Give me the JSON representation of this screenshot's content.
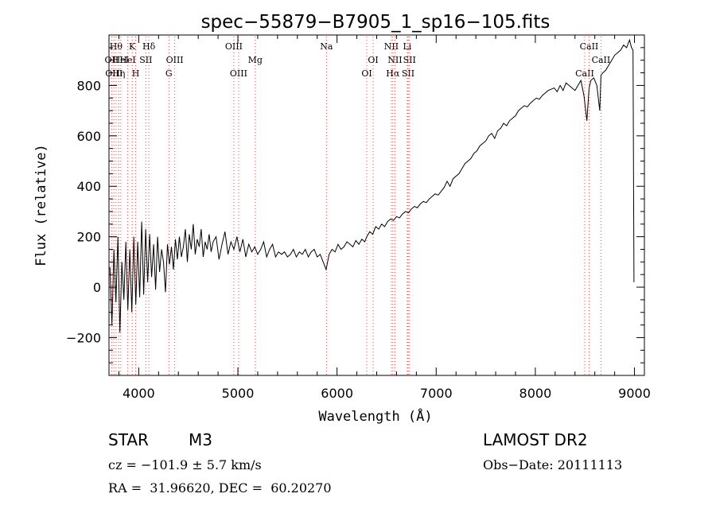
{
  "chart_data": {
    "type": "line",
    "title": "spec−55879−B7905_1_sp16−105.fits",
    "xlabel": "Wavelength (Å)",
    "ylabel": "Flux (relative)",
    "xlim": [
      3700,
      9100
    ],
    "ylim": [
      -350,
      1000
    ],
    "xticks": [
      4000,
      5000,
      6000,
      7000,
      8000,
      9000
    ],
    "xtick_labels": [
      "4000",
      "5000",
      "6000",
      "7000",
      "8000",
      "9000"
    ],
    "yticks": [
      -200,
      0,
      200,
      400,
      600,
      800
    ],
    "ytick_labels": [
      "−200",
      "0",
      "200",
      "400",
      "600",
      "800"
    ],
    "grid": false,
    "series": [
      {
        "color": "#000000",
        "x": [
          3710,
          3730,
          3750,
          3770,
          3790,
          3810,
          3830,
          3850,
          3870,
          3890,
          3910,
          3930,
          3950,
          3970,
          3990,
          4010,
          4030,
          4050,
          4070,
          4090,
          4110,
          4130,
          4150,
          4170,
          4190,
          4210,
          4230,
          4250,
          4270,
          4290,
          4310,
          4330,
          4350,
          4370,
          4390,
          4410,
          4430,
          4450,
          4470,
          4490,
          4510,
          4530,
          4550,
          4570,
          4590,
          4610,
          4630,
          4650,
          4670,
          4690,
          4710,
          4730,
          4750,
          4780,
          4810,
          4840,
          4870,
          4900,
          4930,
          4960,
          4990,
          5020,
          5050,
          5080,
          5110,
          5140,
          5170,
          5200,
          5230,
          5260,
          5290,
          5320,
          5350,
          5380,
          5410,
          5440,
          5470,
          5500,
          5530,
          5560,
          5590,
          5620,
          5650,
          5680,
          5710,
          5740,
          5770,
          5800,
          5830,
          5860,
          5890,
          5920,
          5950,
          5980,
          6010,
          6040,
          6070,
          6100,
          6130,
          6160,
          6190,
          6220,
          6250,
          6280,
          6300,
          6330,
          6360,
          6390,
          6420,
          6450,
          6480,
          6510,
          6540,
          6570,
          6600,
          6630,
          6660,
          6690,
          6720,
          6750,
          6780,
          6810,
          6840,
          6870,
          6900,
          6930,
          6960,
          6990,
          7020,
          7050,
          7080,
          7110,
          7140,
          7170,
          7200,
          7230,
          7260,
          7290,
          7320,
          7350,
          7380,
          7410,
          7440,
          7470,
          7500,
          7530,
          7560,
          7590,
          7620,
          7650,
          7680,
          7710,
          7740,
          7770,
          7800,
          7830,
          7860,
          7890,
          7920,
          7950,
          7980,
          8010,
          8040,
          8070,
          8100,
          8130,
          8160,
          8190,
          8220,
          8250,
          8280,
          8310,
          8340,
          8370,
          8400,
          8430,
          8460,
          8490,
          8520,
          8542,
          8560,
          8590,
          8620,
          8650,
          8662,
          8680,
          8710,
          8740,
          8770,
          8800,
          8830,
          8860,
          8890,
          8920,
          8950,
          8970,
          8985,
          8995
        ],
        "y": [
          80,
          -150,
          150,
          -60,
          200,
          -180,
          100,
          -50,
          180,
          -90,
          150,
          -100,
          200,
          -70,
          180,
          -40,
          260,
          -30,
          230,
          20,
          210,
          40,
          170,
          -10,
          200,
          60,
          150,
          100,
          -20,
          170,
          90,
          160,
          70,
          190,
          110,
          200,
          120,
          160,
          230,
          100,
          210,
          150,
          250,
          130,
          190,
          160,
          230,
          120,
          180,
          150,
          210,
          140,
          180,
          200,
          110,
          170,
          220,
          130,
          180,
          150,
          200,
          140,
          190,
          120,
          170,
          140,
          160,
          130,
          150,
          180,
          120,
          150,
          170,
          120,
          140,
          130,
          140,
          120,
          130,
          150,
          120,
          140,
          130,
          150,
          120,
          140,
          150,
          120,
          130,
          100,
          70,
          130,
          150,
          140,
          170,
          150,
          160,
          180,
          170,
          160,
          185,
          170,
          190,
          180,
          200,
          220,
          210,
          240,
          230,
          250,
          240,
          260,
          270,
          265,
          280,
          275,
          290,
          300,
          295,
          310,
          320,
          315,
          330,
          340,
          335,
          350,
          360,
          370,
          365,
          380,
          395,
          420,
          400,
          430,
          440,
          450,
          470,
          490,
          500,
          510,
          530,
          540,
          560,
          570,
          580,
          600,
          610,
          590,
          620,
          630,
          650,
          640,
          660,
          670,
          680,
          700,
          710,
          720,
          715,
          730,
          740,
          750,
          745,
          760,
          770,
          780,
          785,
          790,
          775,
          800,
          780,
          810,
          800,
          790,
          780,
          800,
          820,
          760,
          660,
          790,
          820,
          830,
          800,
          700,
          840,
          850,
          860,
          880,
          900,
          920,
          930,
          940,
          960,
          950,
          980,
          950,
          940,
          20
        ]
      }
    ],
    "line_markers": [
      {
        "wavelength": 3727,
        "label": "OII",
        "row": 2
      },
      {
        "wavelength": 3750,
        "label": "OIII",
        "row": 3
      },
      {
        "wavelength": 3771,
        "label": "Hθ",
        "row": 1
      },
      {
        "wavelength": 3798,
        "label": "Hη",
        "row": 3
      },
      {
        "wavelength": 3819,
        "label": "HeI",
        "row": 2
      },
      {
        "wavelength": 3889,
        "label": "HeI",
        "row": 2
      },
      {
        "wavelength": 3934,
        "label": "K",
        "row": 1
      },
      {
        "wavelength": 3969,
        "label": "H",
        "row": 3
      },
      {
        "wavelength": 4072,
        "label": "SII",
        "row": 2
      },
      {
        "wavelength": 4102,
        "label": "Hδ",
        "row": 1
      },
      {
        "wavelength": 4304,
        "label": "G",
        "row": 3
      },
      {
        "wavelength": 4363,
        "label": "OIII",
        "row": 2
      },
      {
        "wavelength": 4959,
        "label": "OIII",
        "row": 1
      },
      {
        "wavelength": 5007,
        "label": "OIII",
        "row": 3
      },
      {
        "wavelength": 5175,
        "label": "Mg",
        "row": 2
      },
      {
        "wavelength": 5893,
        "label": "Na",
        "row": 1
      },
      {
        "wavelength": 6300,
        "label": "OI",
        "row": 3
      },
      {
        "wavelength": 6364,
        "label": "OI",
        "row": 2
      },
      {
        "wavelength": 6548,
        "label": "NII",
        "row": 1
      },
      {
        "wavelength": 6563,
        "label": "Hα",
        "row": 3
      },
      {
        "wavelength": 6584,
        "label": "NII",
        "row": 2
      },
      {
        "wavelength": 6708,
        "label": "Li",
        "row": 1
      },
      {
        "wavelength": 6717,
        "label": "SII",
        "row": 3
      },
      {
        "wavelength": 6731,
        "label": "SII",
        "row": 2
      },
      {
        "wavelength": 8498,
        "label": "CaII",
        "row": 3
      },
      {
        "wavelength": 8542,
        "label": "CaII",
        "row": 1
      },
      {
        "wavelength": 8662,
        "label": "CaII",
        "row": 2
      }
    ]
  },
  "info": {
    "object_class": "STAR",
    "subclass": "M3",
    "survey": "LAMOST DR2",
    "cz": "cz = −101.9 ± 5.7 km/s",
    "obs_date": "Obs−Date: 20111113",
    "coords": "RA =  31.96620, DEC =  60.20270"
  }
}
